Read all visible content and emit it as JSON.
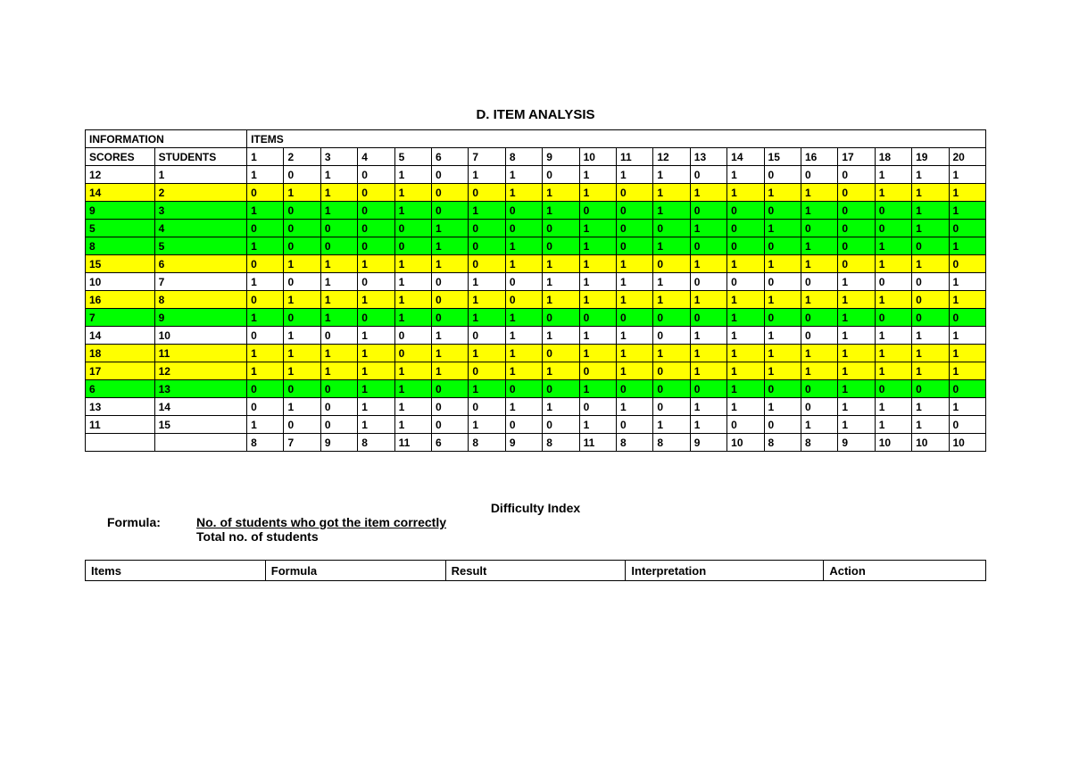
{
  "title": "D. ITEM ANALYSIS",
  "headers": {
    "info": "INFORMATION",
    "items": "ITEMS",
    "scores": "SCORES",
    "students": "STUDENTS"
  },
  "item_numbers": [
    "1",
    "2",
    "3",
    "4",
    "5",
    "6",
    "7",
    "8",
    "9",
    "10",
    "11",
    "12",
    "13",
    "14",
    "15",
    "16",
    "17",
    "18",
    "19",
    "20"
  ],
  "rows": [
    {
      "score": "12",
      "student": "1",
      "hl": "none",
      "v": [
        "1",
        "0",
        "1",
        "0",
        "1",
        "0",
        "1",
        "1",
        "0",
        "1",
        "1",
        "1",
        "0",
        "1",
        "0",
        "0",
        "0",
        "1",
        "1",
        "1"
      ]
    },
    {
      "score": "14",
      "student": "2",
      "hl": "yellow",
      "v": [
        "0",
        "1",
        "1",
        "0",
        "1",
        "0",
        "0",
        "1",
        "1",
        "1",
        "0",
        "1",
        "1",
        "1",
        "1",
        "1",
        "0",
        "1",
        "1",
        "1"
      ]
    },
    {
      "score": "9",
      "student": "3",
      "hl": "green",
      "v": [
        "1",
        "0",
        "1",
        "0",
        "1",
        "0",
        "1",
        "0",
        "1",
        "0",
        "0",
        "1",
        "0",
        "0",
        "0",
        "1",
        "0",
        "0",
        "1",
        "1"
      ]
    },
    {
      "score": "5",
      "student": "4",
      "hl": "green",
      "v": [
        "0",
        "0",
        "0",
        "0",
        "0",
        "1",
        "0",
        "0",
        "0",
        "1",
        "0",
        "0",
        "1",
        "0",
        "1",
        "0",
        "0",
        "0",
        "1",
        "0"
      ]
    },
    {
      "score": "8",
      "student": "5",
      "hl": "green",
      "v": [
        "1",
        "0",
        "0",
        "0",
        "0",
        "1",
        "0",
        "1",
        "0",
        "1",
        "0",
        "1",
        "0",
        "0",
        "0",
        "1",
        "0",
        "1",
        "0",
        "1"
      ]
    },
    {
      "score": "15",
      "student": "6",
      "hl": "yellow",
      "v": [
        "0",
        "1",
        "1",
        "1",
        "1",
        "1",
        "0",
        "1",
        "1",
        "1",
        "1",
        "0",
        "1",
        "1",
        "1",
        "1",
        "0",
        "1",
        "1",
        "0"
      ]
    },
    {
      "score": "10",
      "student": "7",
      "hl": "none",
      "v": [
        "1",
        "0",
        "1",
        "0",
        "1",
        "0",
        "1",
        "0",
        "1",
        "1",
        "1",
        "1",
        "0",
        "0",
        "0",
        "0",
        "1",
        "0",
        "0",
        "1"
      ]
    },
    {
      "score": "16",
      "student": "8",
      "hl": "yellow",
      "v": [
        "0",
        "1",
        "1",
        "1",
        "1",
        "0",
        "1",
        "0",
        "1",
        "1",
        "1",
        "1",
        "1",
        "1",
        "1",
        "1",
        "1",
        "1",
        "0",
        "1"
      ]
    },
    {
      "score": "7",
      "student": "9",
      "hl": "green",
      "v": [
        "1",
        "0",
        "1",
        "0",
        "1",
        "0",
        "1",
        "1",
        "0",
        "0",
        "0",
        "0",
        "0",
        "1",
        "0",
        "0",
        "1",
        "0",
        "0",
        "0"
      ]
    },
    {
      "score": "14",
      "student": "10",
      "hl": "none",
      "v": [
        "0",
        "1",
        "0",
        "1",
        "0",
        "1",
        "0",
        "1",
        "1",
        "1",
        "1",
        "0",
        "1",
        "1",
        "1",
        "0",
        "1",
        "1",
        "1",
        "1"
      ]
    },
    {
      "score": "18",
      "student": "11",
      "hl": "yellow",
      "v": [
        "1",
        "1",
        "1",
        "1",
        "0",
        "1",
        "1",
        "1",
        "0",
        "1",
        "1",
        "1",
        "1",
        "1",
        "1",
        "1",
        "1",
        "1",
        "1",
        "1"
      ]
    },
    {
      "score": "17",
      "student": "12",
      "hl": "yellow",
      "v": [
        "1",
        "1",
        "1",
        "1",
        "1",
        "1",
        "0",
        "1",
        "1",
        "0",
        "1",
        "0",
        "1",
        "1",
        "1",
        "1",
        "1",
        "1",
        "1",
        "1"
      ]
    },
    {
      "score": "6",
      "student": "13",
      "hl": "green",
      "v": [
        "0",
        "0",
        "0",
        "1",
        "1",
        "0",
        "1",
        "0",
        "0",
        "1",
        "0",
        "0",
        "0",
        "1",
        "0",
        "0",
        "1",
        "0",
        "0",
        "0"
      ]
    },
    {
      "score": "13",
      "student": "14",
      "hl": "none",
      "v": [
        "0",
        "1",
        "0",
        "1",
        "1",
        "0",
        "0",
        "1",
        "1",
        "0",
        "1",
        "0",
        "1",
        "1",
        "1",
        "0",
        "1",
        "1",
        "1",
        "1"
      ]
    },
    {
      "score": "11",
      "student": "15",
      "hl": "none",
      "v": [
        "1",
        "0",
        "0",
        "1",
        "1",
        "0",
        "1",
        "0",
        "0",
        "1",
        "0",
        "1",
        "1",
        "0",
        "0",
        "1",
        "1",
        "1",
        "1",
        "0"
      ]
    }
  ],
  "totals": [
    "8",
    "7",
    "9",
    "8",
    "11",
    "6",
    "8",
    "9",
    "8",
    "11",
    "8",
    "8",
    "9",
    "10",
    "8",
    "8",
    "9",
    "10",
    "10",
    "10"
  ],
  "difficulty": {
    "title": "Difficulty Index",
    "formula_label": "Formula:",
    "numerator": "No. of students who got the item correctly",
    "denominator": "Total no. of students",
    "columns": [
      "Items",
      "Formula",
      "Result",
      "Interpretation",
      "Action"
    ]
  },
  "colors": {
    "yellow": "#ffff00",
    "green": "#00ff00",
    "border": "#000000",
    "background": "#ffffff",
    "text": "#000000"
  }
}
